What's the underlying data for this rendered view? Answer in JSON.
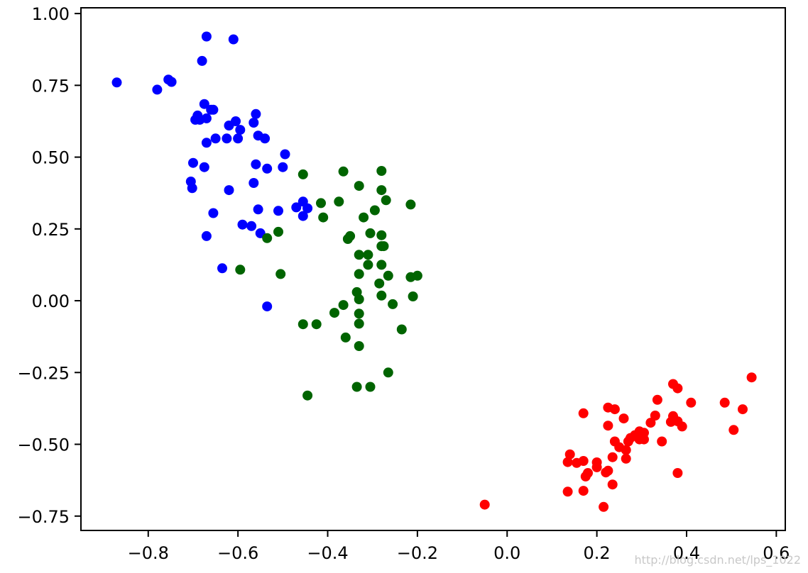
{
  "chart_data": {
    "type": "scatter",
    "xlim": [
      -0.95,
      0.62
    ],
    "ylim": [
      -0.8,
      1.02
    ],
    "x_ticks": [
      -0.8,
      -0.6,
      -0.4,
      -0.2,
      0.0,
      0.2,
      0.4,
      0.6
    ],
    "x_tick_labels": [
      "−0.8",
      "−0.6",
      "−0.4",
      "−0.2",
      "0.0",
      "0.2",
      "0.4",
      "0.6"
    ],
    "y_ticks": [
      1.0,
      0.75,
      0.5,
      0.25,
      0.0,
      -0.25,
      -0.5,
      -0.75
    ],
    "y_tick_labels": [
      "1.00",
      "0.75",
      "0.50",
      "0.25",
      "0.00",
      "−0.25",
      "−0.50",
      "−0.75"
    ],
    "grid": false,
    "series": [
      {
        "color": "#0000ff",
        "points": [
          [
            -0.87,
            0.76
          ],
          [
            -0.78,
            0.735
          ],
          [
            -0.755,
            0.77
          ],
          [
            -0.748,
            0.762
          ],
          [
            -0.67,
            0.92
          ],
          [
            -0.61,
            0.91
          ],
          [
            -0.68,
            0.835
          ],
          [
            -0.675,
            0.685
          ],
          [
            -0.66,
            0.665
          ],
          [
            -0.655,
            0.665
          ],
          [
            -0.695,
            0.63
          ],
          [
            -0.69,
            0.645
          ],
          [
            -0.685,
            0.63
          ],
          [
            -0.67,
            0.635
          ],
          [
            -0.62,
            0.61
          ],
          [
            -0.605,
            0.625
          ],
          [
            -0.595,
            0.595
          ],
          [
            -0.56,
            0.65
          ],
          [
            -0.565,
            0.62
          ],
          [
            -0.555,
            0.575
          ],
          [
            -0.54,
            0.565
          ],
          [
            -0.67,
            0.55
          ],
          [
            -0.65,
            0.565
          ],
          [
            -0.625,
            0.565
          ],
          [
            -0.6,
            0.565
          ],
          [
            -0.7,
            0.48
          ],
          [
            -0.675,
            0.465
          ],
          [
            -0.56,
            0.475
          ],
          [
            -0.535,
            0.46
          ],
          [
            -0.495,
            0.51
          ],
          [
            -0.5,
            0.465
          ],
          [
            -0.705,
            0.415
          ],
          [
            -0.702,
            0.392
          ],
          [
            -0.62,
            0.385
          ],
          [
            -0.565,
            0.41
          ],
          [
            -0.655,
            0.305
          ],
          [
            -0.555,
            0.318
          ],
          [
            -0.51,
            0.313
          ],
          [
            -0.47,
            0.325
          ],
          [
            -0.455,
            0.345
          ],
          [
            -0.455,
            0.295
          ],
          [
            -0.445,
            0.322
          ],
          [
            -0.59,
            0.265
          ],
          [
            -0.57,
            0.26
          ],
          [
            -0.55,
            0.235
          ],
          [
            -0.67,
            0.225
          ],
          [
            -0.635,
            0.113
          ],
          [
            -0.535,
            -0.02
          ]
        ]
      },
      {
        "color": "#006400",
        "points": [
          [
            -0.455,
            0.44
          ],
          [
            -0.365,
            0.45
          ],
          [
            -0.28,
            0.452
          ],
          [
            -0.33,
            0.4
          ],
          [
            -0.28,
            0.385
          ],
          [
            -0.415,
            0.34
          ],
          [
            -0.375,
            0.345
          ],
          [
            -0.27,
            0.35
          ],
          [
            -0.215,
            0.335
          ],
          [
            -0.295,
            0.315
          ],
          [
            -0.41,
            0.29
          ],
          [
            -0.32,
            0.29
          ],
          [
            -0.51,
            0.24
          ],
          [
            -0.535,
            0.218
          ],
          [
            -0.35,
            0.225
          ],
          [
            -0.355,
            0.215
          ],
          [
            -0.305,
            0.235
          ],
          [
            -0.28,
            0.228
          ],
          [
            -0.28,
            0.19
          ],
          [
            -0.275,
            0.19
          ],
          [
            -0.33,
            0.16
          ],
          [
            -0.31,
            0.16
          ],
          [
            -0.31,
            0.125
          ],
          [
            -0.28,
            0.125
          ],
          [
            -0.595,
            0.108
          ],
          [
            -0.505,
            0.093
          ],
          [
            -0.33,
            0.093
          ],
          [
            -0.265,
            0.087
          ],
          [
            -0.215,
            0.082
          ],
          [
            -0.2,
            0.087
          ],
          [
            -0.285,
            0.06
          ],
          [
            -0.335,
            0.03
          ],
          [
            -0.33,
            0.005
          ],
          [
            -0.28,
            0.018
          ],
          [
            -0.21,
            0.015
          ],
          [
            -0.365,
            -0.015
          ],
          [
            -0.255,
            -0.012
          ],
          [
            -0.385,
            -0.042
          ],
          [
            -0.33,
            -0.045
          ],
          [
            -0.455,
            -0.082
          ],
          [
            -0.425,
            -0.082
          ],
          [
            -0.33,
            -0.08
          ],
          [
            -0.235,
            -0.1
          ],
          [
            -0.36,
            -0.128
          ],
          [
            -0.33,
            -0.158
          ],
          [
            -0.265,
            -0.25
          ],
          [
            -0.445,
            -0.33
          ],
          [
            -0.335,
            -0.3
          ],
          [
            -0.305,
            -0.3
          ]
        ]
      },
      {
        "color": "#ff0000",
        "points": [
          [
            0.545,
            -0.267
          ],
          [
            0.37,
            -0.29
          ],
          [
            0.38,
            -0.305
          ],
          [
            0.41,
            -0.355
          ],
          [
            0.335,
            -0.345
          ],
          [
            0.485,
            -0.355
          ],
          [
            0.525,
            -0.378
          ],
          [
            0.225,
            -0.372
          ],
          [
            0.24,
            -0.378
          ],
          [
            0.17,
            -0.392
          ],
          [
            0.26,
            -0.41
          ],
          [
            0.33,
            -0.4
          ],
          [
            0.37,
            -0.402
          ],
          [
            0.365,
            -0.422
          ],
          [
            0.38,
            -0.42
          ],
          [
            0.39,
            -0.438
          ],
          [
            0.32,
            -0.425
          ],
          [
            0.225,
            -0.435
          ],
          [
            0.295,
            -0.455
          ],
          [
            0.3,
            -0.46
          ],
          [
            0.305,
            -0.46
          ],
          [
            0.285,
            -0.468
          ],
          [
            0.275,
            -0.478
          ],
          [
            0.27,
            -0.49
          ],
          [
            0.295,
            -0.483
          ],
          [
            0.305,
            -0.483
          ],
          [
            0.24,
            -0.49
          ],
          [
            0.345,
            -0.49
          ],
          [
            0.505,
            -0.45
          ],
          [
            0.25,
            -0.51
          ],
          [
            0.265,
            -0.52
          ],
          [
            0.14,
            -0.535
          ],
          [
            0.235,
            -0.545
          ],
          [
            0.265,
            -0.55
          ],
          [
            0.135,
            -0.562
          ],
          [
            0.155,
            -0.565
          ],
          [
            0.17,
            -0.558
          ],
          [
            0.2,
            -0.563
          ],
          [
            0.2,
            -0.58
          ],
          [
            0.18,
            -0.6
          ],
          [
            0.175,
            -0.612
          ],
          [
            0.225,
            -0.592
          ],
          [
            0.22,
            -0.598
          ],
          [
            0.38,
            -0.6
          ],
          [
            0.235,
            -0.64
          ],
          [
            0.135,
            -0.665
          ],
          [
            0.17,
            -0.662
          ],
          [
            0.215,
            -0.718
          ],
          [
            -0.05,
            -0.71
          ]
        ]
      }
    ]
  },
  "watermark": "http://blog.csdn.net/lps_1022"
}
